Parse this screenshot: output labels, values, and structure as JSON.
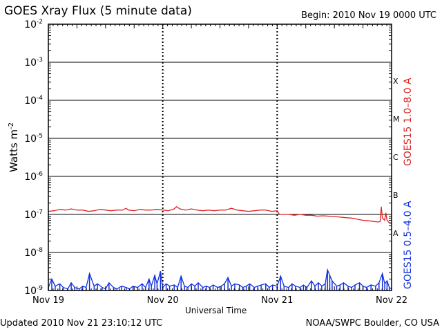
{
  "header": {
    "title": "GOES Xray Flux (5 minute data)",
    "begin": "Begin:  2010 Nov 19 0000 UTC"
  },
  "footer": {
    "updated": "Updated 2010 Nov 21 23:10:12 UTC",
    "credit": "NOAA/SWPC Boulder, CO USA"
  },
  "chart_data": {
    "type": "line",
    "xlabel": "Universal Time",
    "ylabel": "Watts m",
    "ylabel_superscript": "-2",
    "yscale": "log",
    "ylim": [
      1e-09,
      0.01
    ],
    "xlim": [
      "2010-11-19",
      "2010-11-22"
    ],
    "y_tick_labels": [
      {
        "value": 0.01,
        "base": "10",
        "exp": "-2"
      },
      {
        "value": 0.001,
        "base": "10",
        "exp": "-3"
      },
      {
        "value": 0.0001,
        "base": "10",
        "exp": "-4"
      },
      {
        "value": 1e-05,
        "base": "10",
        "exp": "-5"
      },
      {
        "value": 1e-06,
        "base": "10",
        "exp": "-6"
      },
      {
        "value": 1e-07,
        "base": "10",
        "exp": "-7"
      },
      {
        "value": 1e-08,
        "base": "10",
        "exp": "-8"
      },
      {
        "value": 1e-09,
        "base": "10",
        "exp": "-9"
      }
    ],
    "x_tick_labels": [
      {
        "day": 0,
        "label": "Nov 19"
      },
      {
        "day": 1,
        "label": "Nov 20"
      },
      {
        "day": 2,
        "label": "Nov 21"
      },
      {
        "day": 3,
        "label": "Nov 22"
      }
    ],
    "flare_classes": [
      {
        "label": "X",
        "value": 0.00032
      },
      {
        "label": "M",
        "value": 3.2e-05
      },
      {
        "label": "C",
        "value": 3.2e-06
      },
      {
        "label": "B",
        "value": 3.2e-07
      },
      {
        "label": "A",
        "value": 3.2e-08
      }
    ],
    "grid": true,
    "series": [
      {
        "name": "GOES15 1.0–8.0 A",
        "color": "#e02020",
        "points": [
          [
            0.0,
            1.2e-07
          ],
          [
            0.05,
            1.25e-07
          ],
          [
            0.1,
            1.35e-07
          ],
          [
            0.15,
            1.3e-07
          ],
          [
            0.2,
            1.4e-07
          ],
          [
            0.25,
            1.3e-07
          ],
          [
            0.3,
            1.3e-07
          ],
          [
            0.35,
            1.2e-07
          ],
          [
            0.4,
            1.25e-07
          ],
          [
            0.45,
            1.35e-07
          ],
          [
            0.5,
            1.3e-07
          ],
          [
            0.55,
            1.25e-07
          ],
          [
            0.6,
            1.3e-07
          ],
          [
            0.65,
            1.3e-07
          ],
          [
            0.68,
            1.45e-07
          ],
          [
            0.7,
            1.3e-07
          ],
          [
            0.75,
            1.25e-07
          ],
          [
            0.8,
            1.35e-07
          ],
          [
            0.85,
            1.3e-07
          ],
          [
            0.9,
            1.3e-07
          ],
          [
            0.95,
            1.35e-07
          ],
          [
            1.0,
            1.3e-07
          ],
          [
            1.05,
            1.25e-07
          ],
          [
            1.1,
            1.4e-07
          ],
          [
            1.12,
            1.6e-07
          ],
          [
            1.15,
            1.4e-07
          ],
          [
            1.2,
            1.3e-07
          ],
          [
            1.25,
            1.4e-07
          ],
          [
            1.3,
            1.3e-07
          ],
          [
            1.35,
            1.25e-07
          ],
          [
            1.4,
            1.3e-07
          ],
          [
            1.45,
            1.25e-07
          ],
          [
            1.5,
            1.3e-07
          ],
          [
            1.55,
            1.3e-07
          ],
          [
            1.6,
            1.45e-07
          ],
          [
            1.65,
            1.3e-07
          ],
          [
            1.7,
            1.25e-07
          ],
          [
            1.75,
            1.2e-07
          ],
          [
            1.8,
            1.25e-07
          ],
          [
            1.85,
            1.3e-07
          ],
          [
            1.9,
            1.3e-07
          ],
          [
            1.95,
            1.2e-07
          ],
          [
            2.0,
            1.25e-07
          ],
          [
            2.02,
            1e-07
          ],
          [
            2.05,
            1e-07
          ],
          [
            2.1,
            1e-07
          ],
          [
            2.15,
            9.5e-08
          ],
          [
            2.2,
            1e-07
          ],
          [
            2.25,
            9.5e-08
          ],
          [
            2.3,
            9.5e-08
          ],
          [
            2.35,
            9e-08
          ],
          [
            2.4,
            9.2e-08
          ],
          [
            2.45,
            9e-08
          ],
          [
            2.5,
            8.8e-08
          ],
          [
            2.55,
            8.5e-08
          ],
          [
            2.6,
            8.2e-08
          ],
          [
            2.65,
            8e-08
          ],
          [
            2.7,
            7.5e-08
          ],
          [
            2.75,
            7e-08
          ],
          [
            2.8,
            6.8e-08
          ],
          [
            2.85,
            6.5e-08
          ],
          [
            2.88,
            6.3e-08
          ],
          [
            2.9,
            6.5e-08
          ],
          [
            2.91,
            1.6e-07
          ],
          [
            2.92,
            8e-08
          ],
          [
            2.94,
            7e-08
          ],
          [
            2.95,
            1.1e-07
          ],
          [
            2.96,
            7e-08
          ],
          [
            2.98,
            6e-08
          ],
          [
            3.0,
            5.8e-08
          ]
        ]
      },
      {
        "name": "GOES15 0.5–4.0 A",
        "color": "#1030e0",
        "points": [
          [
            0.0,
            1.2e-09
          ],
          [
            0.03,
            2e-09
          ],
          [
            0.06,
            1.3e-09
          ],
          [
            0.1,
            1.5e-09
          ],
          [
            0.13,
            1.2e-09
          ],
          [
            0.17,
            1.1e-09
          ],
          [
            0.2,
            1.6e-09
          ],
          [
            0.23,
            1.2e-09
          ],
          [
            0.27,
            1.1e-09
          ],
          [
            0.3,
            1.3e-09
          ],
          [
            0.33,
            1.2e-09
          ],
          [
            0.36,
            2.8e-09
          ],
          [
            0.4,
            1.3e-09
          ],
          [
            0.43,
            1.5e-09
          ],
          [
            0.47,
            1.2e-09
          ],
          [
            0.5,
            1.1e-09
          ],
          [
            0.53,
            1.6e-09
          ],
          [
            0.57,
            1.2e-09
          ],
          [
            0.6,
            1.1e-09
          ],
          [
            0.64,
            1.3e-09
          ],
          [
            0.68,
            1.2e-09
          ],
          [
            0.71,
            1.1e-09
          ],
          [
            0.74,
            1.3e-09
          ],
          [
            0.78,
            1.2e-09
          ],
          [
            0.82,
            1.5e-09
          ],
          [
            0.85,
            1.2e-09
          ],
          [
            0.88,
            2e-09
          ],
          [
            0.9,
            1.3e-09
          ],
          [
            0.93,
            2.5e-09
          ],
          [
            0.95,
            1.5e-09
          ],
          [
            0.98,
            3.2e-09
          ],
          [
            1.0,
            1.2e-09
          ],
          [
            1.03,
            1.5e-09
          ],
          [
            1.06,
            1.3e-09
          ],
          [
            1.1,
            1.4e-09
          ],
          [
            1.13,
            1.2e-09
          ],
          [
            1.16,
            2.4e-09
          ],
          [
            1.19,
            1.3e-09
          ],
          [
            1.22,
            1.2e-09
          ],
          [
            1.25,
            1.5e-09
          ],
          [
            1.28,
            1.3e-09
          ],
          [
            1.31,
            1.6e-09
          ],
          [
            1.35,
            1.2e-09
          ],
          [
            1.38,
            1.3e-09
          ],
          [
            1.41,
            1.2e-09
          ],
          [
            1.44,
            1.4e-09
          ],
          [
            1.48,
            1.2e-09
          ],
          [
            1.51,
            1.3e-09
          ],
          [
            1.54,
            1.5e-09
          ],
          [
            1.57,
            2.2e-09
          ],
          [
            1.6,
            1.3e-09
          ],
          [
            1.63,
            1.5e-09
          ],
          [
            1.67,
            1.4e-09
          ],
          [
            1.7,
            1.2e-09
          ],
          [
            1.73,
            1.3e-09
          ],
          [
            1.76,
            1.5e-09
          ],
          [
            1.8,
            1.2e-09
          ],
          [
            1.83,
            1.3e-09
          ],
          [
            1.86,
            1.4e-09
          ],
          [
            1.9,
            1.5e-09
          ],
          [
            1.93,
            1.2e-09
          ],
          [
            1.96,
            1.4e-09
          ],
          [
            2.0,
            1.3e-09
          ],
          [
            2.03,
            2.4e-09
          ],
          [
            2.06,
            1.3e-09
          ],
          [
            2.1,
            1.2e-09
          ],
          [
            2.13,
            1.5e-09
          ],
          [
            2.16,
            1.3e-09
          ],
          [
            2.2,
            1.2e-09
          ],
          [
            2.23,
            1.4e-09
          ],
          [
            2.26,
            1.2e-09
          ],
          [
            2.3,
            1.8e-09
          ],
          [
            2.33,
            1.3e-09
          ],
          [
            2.36,
            1.6e-09
          ],
          [
            2.39,
            1.3e-09
          ],
          [
            2.42,
            1.5e-09
          ],
          [
            2.44,
            3.5e-09
          ],
          [
            2.46,
            2.5e-09
          ],
          [
            2.48,
            1.8e-09
          ],
          [
            2.52,
            1.3e-09
          ],
          [
            2.55,
            1.4e-09
          ],
          [
            2.58,
            1.6e-09
          ],
          [
            2.62,
            1.3e-09
          ],
          [
            2.65,
            1.2e-09
          ],
          [
            2.68,
            1.4e-09
          ],
          [
            2.72,
            1.6e-09
          ],
          [
            2.75,
            1.3e-09
          ],
          [
            2.78,
            1.2e-09
          ],
          [
            2.82,
            1.4e-09
          ],
          [
            2.86,
            1.3e-09
          ],
          [
            2.89,
            1.6e-09
          ],
          [
            2.92,
            2.8e-09
          ],
          [
            2.94,
            1.5e-09
          ],
          [
            2.96,
            1.8e-09
          ],
          [
            2.98,
            1.2e-09
          ],
          [
            3.0,
            1.1e-09
          ]
        ]
      }
    ]
  }
}
